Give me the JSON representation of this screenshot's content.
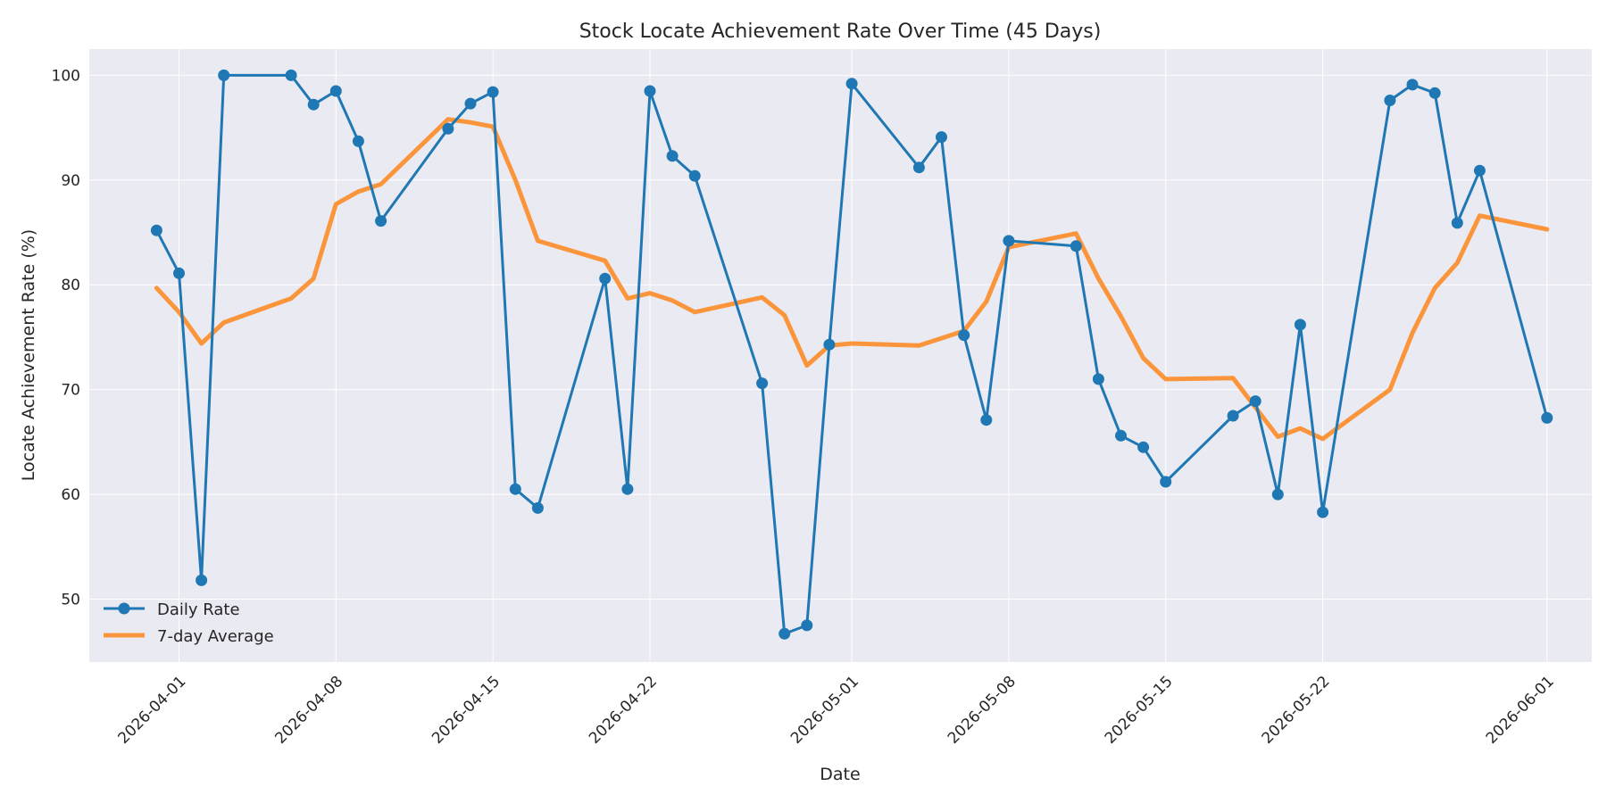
{
  "chart_data": {
    "type": "line",
    "title": "Stock Locate Achievement Rate Over Time (45 Days)",
    "xlabel": "Date",
    "ylabel": "Locate Achievement Rate (%)",
    "ylim": [
      44,
      102.5
    ],
    "xlim": [
      "2026-03-28",
      "2026-06-03"
    ],
    "x_ticks": [
      "2026-04-01",
      "2026-04-08",
      "2026-04-15",
      "2026-04-22",
      "2026-05-01",
      "2026-05-08",
      "2026-05-15",
      "2026-05-22",
      "2026-06-01"
    ],
    "y_ticks": [
      50,
      60,
      70,
      80,
      90,
      100
    ],
    "grid": true,
    "legend_position": "lower-left",
    "colors": {
      "daily": "#1f77b4",
      "avg": "#ff7f0e",
      "background": "#eaeaf2",
      "grid": "#ffffff"
    },
    "series": [
      {
        "name": "Daily Rate",
        "x": [
          "2026-03-31",
          "2026-04-01",
          "2026-04-02",
          "2026-04-03",
          "2026-04-06",
          "2026-04-07",
          "2026-04-08",
          "2026-04-09",
          "2026-04-10",
          "2026-04-13",
          "2026-04-14",
          "2026-04-15",
          "2026-04-16",
          "2026-04-17",
          "2026-04-20",
          "2026-04-21",
          "2026-04-22",
          "2026-04-23",
          "2026-04-24",
          "2026-04-27",
          "2026-04-28",
          "2026-04-29",
          "2026-04-30",
          "2026-05-01",
          "2026-05-04",
          "2026-05-05",
          "2026-05-06",
          "2026-05-07",
          "2026-05-08",
          "2026-05-11",
          "2026-05-12",
          "2026-05-13",
          "2026-05-14",
          "2026-05-15",
          "2026-05-18",
          "2026-05-19",
          "2026-05-20",
          "2026-05-21",
          "2026-05-22",
          "2026-05-25",
          "2026-05-26",
          "2026-05-27",
          "2026-05-28",
          "2026-05-29",
          "2026-06-01"
        ],
        "values": [
          85.2,
          81.1,
          51.8,
          100.0,
          100.0,
          97.2,
          98.5,
          93.7,
          86.1,
          94.9,
          97.3,
          98.4,
          60.5,
          58.7,
          80.6,
          60.5,
          98.5,
          92.3,
          90.4,
          70.6,
          46.7,
          47.5,
          74.3,
          99.2,
          91.2,
          94.1,
          75.2,
          67.1,
          84.2,
          83.7,
          71.0,
          65.6,
          64.5,
          61.2,
          67.5,
          68.9,
          60.0,
          76.2,
          58.3,
          97.6,
          99.1,
          98.3,
          85.9,
          90.9,
          67.3
        ]
      },
      {
        "name": "7-day Average",
        "x": [
          "2026-03-31",
          "2026-04-01",
          "2026-04-02",
          "2026-04-03",
          "2026-04-06",
          "2026-04-07",
          "2026-04-08",
          "2026-04-09",
          "2026-04-10",
          "2026-04-13",
          "2026-04-14",
          "2026-04-15",
          "2026-04-16",
          "2026-04-17",
          "2026-04-20",
          "2026-04-21",
          "2026-04-22",
          "2026-04-23",
          "2026-04-24",
          "2026-04-27",
          "2026-04-28",
          "2026-04-29",
          "2026-04-30",
          "2026-05-01",
          "2026-05-04",
          "2026-05-05",
          "2026-05-06",
          "2026-05-07",
          "2026-05-08",
          "2026-05-11",
          "2026-05-12",
          "2026-05-13",
          "2026-05-14",
          "2026-05-15",
          "2026-05-18",
          "2026-05-19",
          "2026-05-20",
          "2026-05-21",
          "2026-05-22",
          "2026-05-25",
          "2026-05-26",
          "2026-05-27",
          "2026-05-28",
          "2026-05-29",
          "2026-06-01"
        ],
        "values": [
          79.7,
          77.4,
          74.4,
          76.4,
          78.7,
          80.6,
          87.7,
          88.9,
          89.6,
          95.8,
          95.5,
          95.1,
          90.0,
          84.2,
          82.3,
          78.7,
          79.2,
          78.5,
          77.4,
          78.8,
          77.1,
          72.3,
          74.2,
          74.4,
          74.2,
          74.9,
          75.6,
          78.4,
          83.6,
          84.9,
          80.6,
          77.0,
          73.0,
          71.0,
          71.1,
          68.3,
          65.5,
          66.3,
          65.3,
          70.0,
          75.4,
          79.7,
          82.1,
          86.6,
          85.3
        ]
      }
    ]
  }
}
